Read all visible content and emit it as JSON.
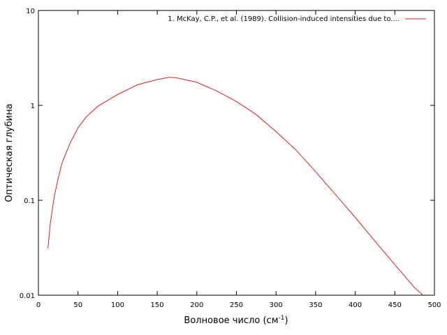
{
  "chart_data": {
    "type": "line",
    "xlabel": "Волновое число (см",
    "xlabel_sup": "-1",
    "xlabel_end": ")",
    "ylabel": "Оптическая глубина",
    "x": [
      12,
      15,
      20,
      25,
      30,
      40,
      50,
      60,
      75,
      100,
      125,
      150,
      165,
      175,
      200,
      225,
      250,
      275,
      300,
      325,
      350,
      375,
      400,
      425,
      450,
      475,
      485
    ],
    "series": [
      {
        "name": "1. McKay, C.P., et al. (1989). Collision-induced intensities due to....",
        "color": "#e41a1c",
        "values": [
          0.031,
          0.057,
          0.11,
          0.17,
          0.25,
          0.4,
          0.58,
          0.75,
          0.98,
          1.3,
          1.65,
          1.87,
          1.98,
          1.95,
          1.75,
          1.42,
          1.1,
          0.8,
          0.53,
          0.34,
          0.2,
          0.115,
          0.066,
          0.037,
          0.021,
          0.012,
          0.0101
        ]
      }
    ],
    "xlim": [
      0,
      500
    ],
    "xticks": [
      0,
      50,
      100,
      150,
      200,
      250,
      300,
      350,
      400,
      450,
      500
    ],
    "ylim": [
      0.01,
      10
    ],
    "yticks": [
      0.01,
      0.1,
      1,
      10
    ],
    "ylog": true,
    "legend": "upper right",
    "grid": false
  }
}
